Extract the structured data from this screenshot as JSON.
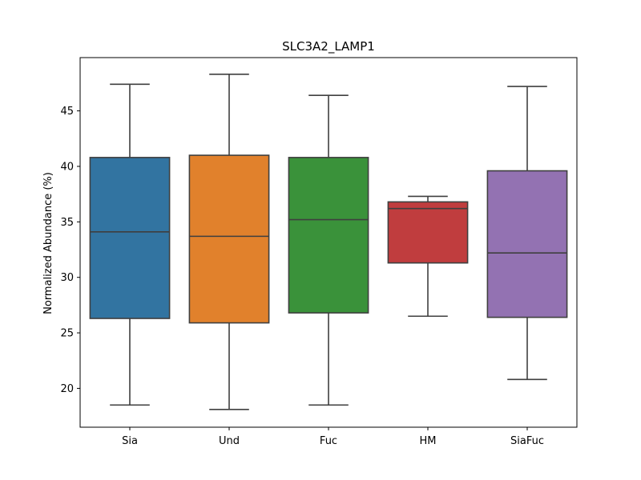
{
  "chart_data": {
    "type": "box",
    "title": "SLC3A2_LAMP1",
    "xlabel": "",
    "ylabel": "Normalized Abundance (%)",
    "ylim": [
      16.5,
      49.8
    ],
    "yticks": [
      20,
      25,
      30,
      35,
      40,
      45
    ],
    "grid": false,
    "categories": [
      "Sia",
      "Und",
      "Fuc",
      "HM",
      "SiaFuc"
    ],
    "colors": [
      "#3274a1",
      "#e1812c",
      "#3a923a",
      "#c03d3e",
      "#9372b2"
    ],
    "boxes": [
      {
        "category": "Sia",
        "whisker_low": 18.5,
        "q1": 26.3,
        "median": 34.1,
        "q3": 40.8,
        "whisker_high": 47.4
      },
      {
        "category": "Und",
        "whisker_low": 18.1,
        "q1": 25.9,
        "median": 33.7,
        "q3": 41.0,
        "whisker_high": 48.3
      },
      {
        "category": "Fuc",
        "whisker_low": 18.5,
        "q1": 26.8,
        "median": 35.2,
        "q3": 40.8,
        "whisker_high": 46.4
      },
      {
        "category": "HM",
        "whisker_low": 26.5,
        "q1": 31.3,
        "median": 36.2,
        "q3": 36.8,
        "whisker_high": 37.3
      },
      {
        "category": "SiaFuc",
        "whisker_low": 20.8,
        "q1": 26.4,
        "median": 32.2,
        "q3": 39.6,
        "whisker_high": 47.2
      }
    ]
  }
}
